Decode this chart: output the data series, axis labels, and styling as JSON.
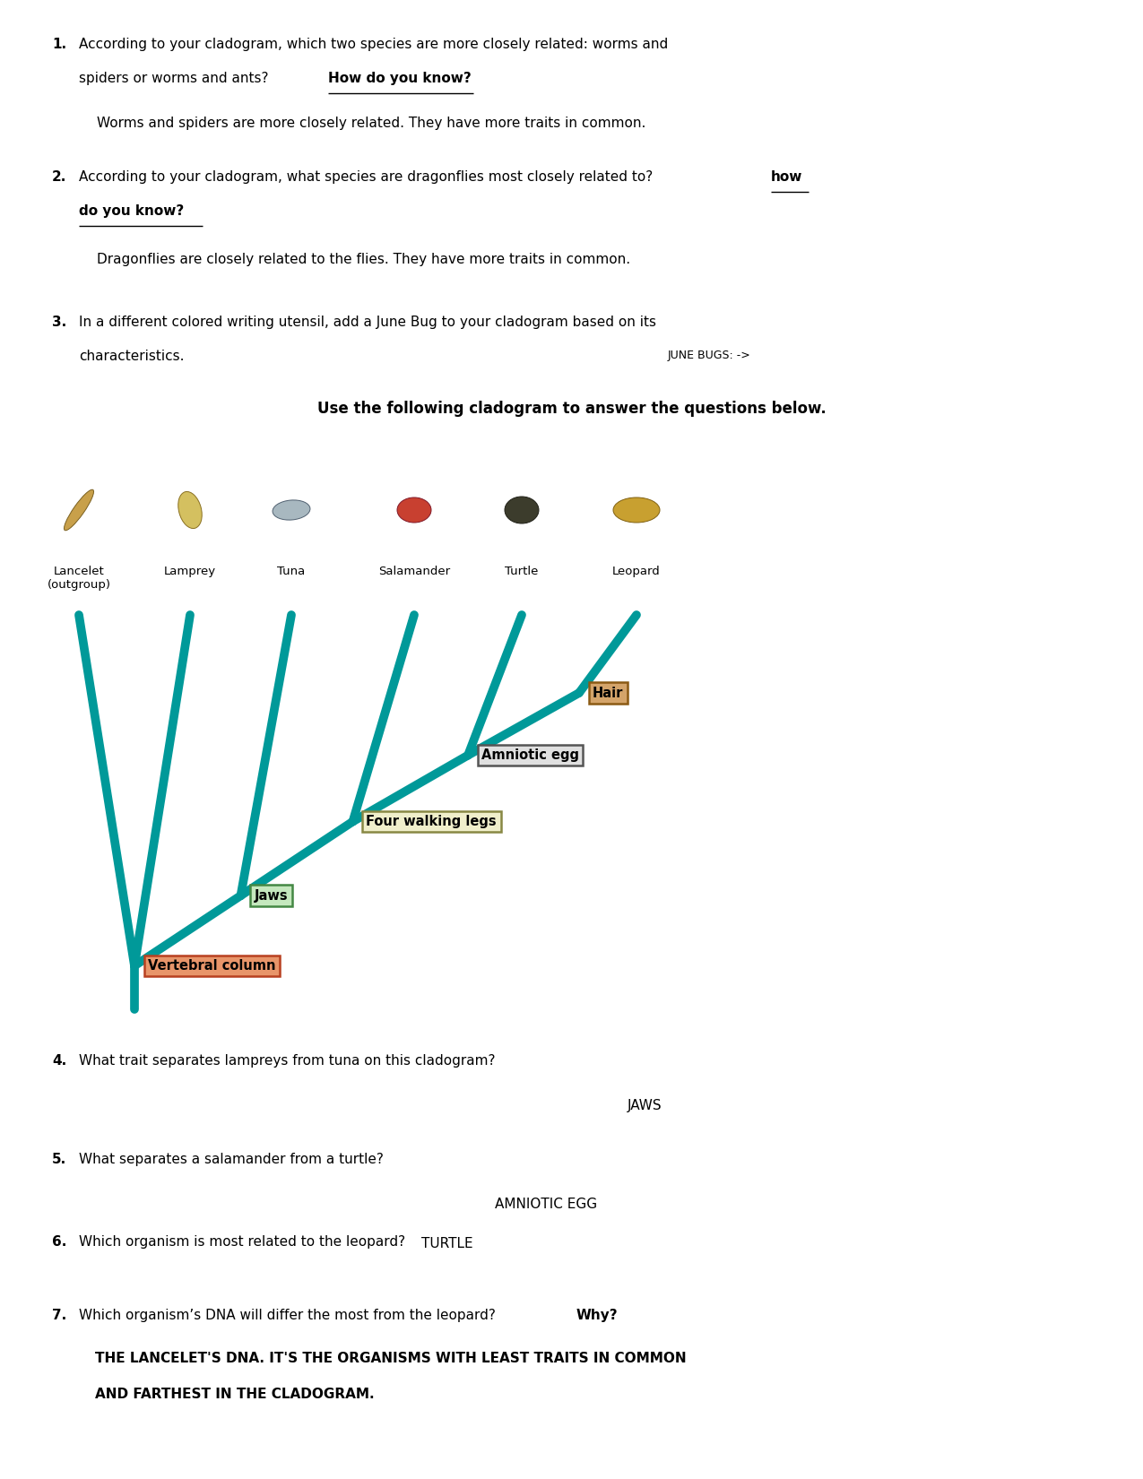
{
  "bg": "#ffffff",
  "pw": 12.75,
  "ph": 16.5,
  "dpi": 100,
  "ml": 0.58,
  "fn": 11,
  "q1_num": "1.",
  "q1_line1": "According to your cladogram, which two species are more closely related: worms and",
  "q1_line2": "spiders or worms and ants? ",
  "q1_bold": "How do you know?",
  "q1_ans": "Worms and spiders are more closely related. They have more traits in common.",
  "q2_num": "2.",
  "q2_line1": "According to your cladogram, what species are dragonflies most closely related to? ",
  "q2_how": "how",
  "q2_bold2": "do you know?",
  "q2_ans": "Dragonflies are closely related to the flies. They have more traits in common.",
  "q3_num": "3.",
  "q3_line1": "In a different colored writing utensil, add a June Bug to your cladogram based on its",
  "q3_line2": "characteristics.",
  "q3_note": "JUNE BUGS: ->",
  "clado_title": "Use the following cladogram to answer the questions below.",
  "species": [
    "Lancelet\n(outgroup)",
    "Lamprey",
    "Tuna",
    "Salamander",
    "Turtle",
    "Leopard"
  ],
  "traits": [
    "Hair",
    "Amniotic egg",
    "Four walking legs",
    "Jaws",
    "Vertebral column"
  ],
  "trait_fills": [
    "#d4a46a",
    "#e0e0e0",
    "#f0efcb",
    "#c5e8be",
    "#e8956a"
  ],
  "trait_edges": [
    "#8b5a14",
    "#555555",
    "#888844",
    "#448844",
    "#b84020"
  ],
  "teal": "#009999",
  "lw": 7,
  "q4_num": "4.",
  "q4_q": "What trait separates lampreys from tuna on this cladogram?",
  "q4_a": "JAWS",
  "q5_num": "5.",
  "q5_q": "What separates a salamander from a turtle?",
  "q5_a": "AMNIOTIC EGG",
  "q6_num": "6.",
  "q6_q": "Which organism is most related to the leopard?",
  "q6_a": "TURTLE",
  "q7_num": "7.",
  "q7_q": "Which organism’s DNA will differ the most from the leopard?  ",
  "q7_bold": "Why?",
  "q7_a1": "THE LANCELET'S DNA. IT'S THE ORGANISMS WITH LEAST TRAITS IN COMMON",
  "q7_a2": "AND FARTHEST IN THE CLADOGRAM."
}
